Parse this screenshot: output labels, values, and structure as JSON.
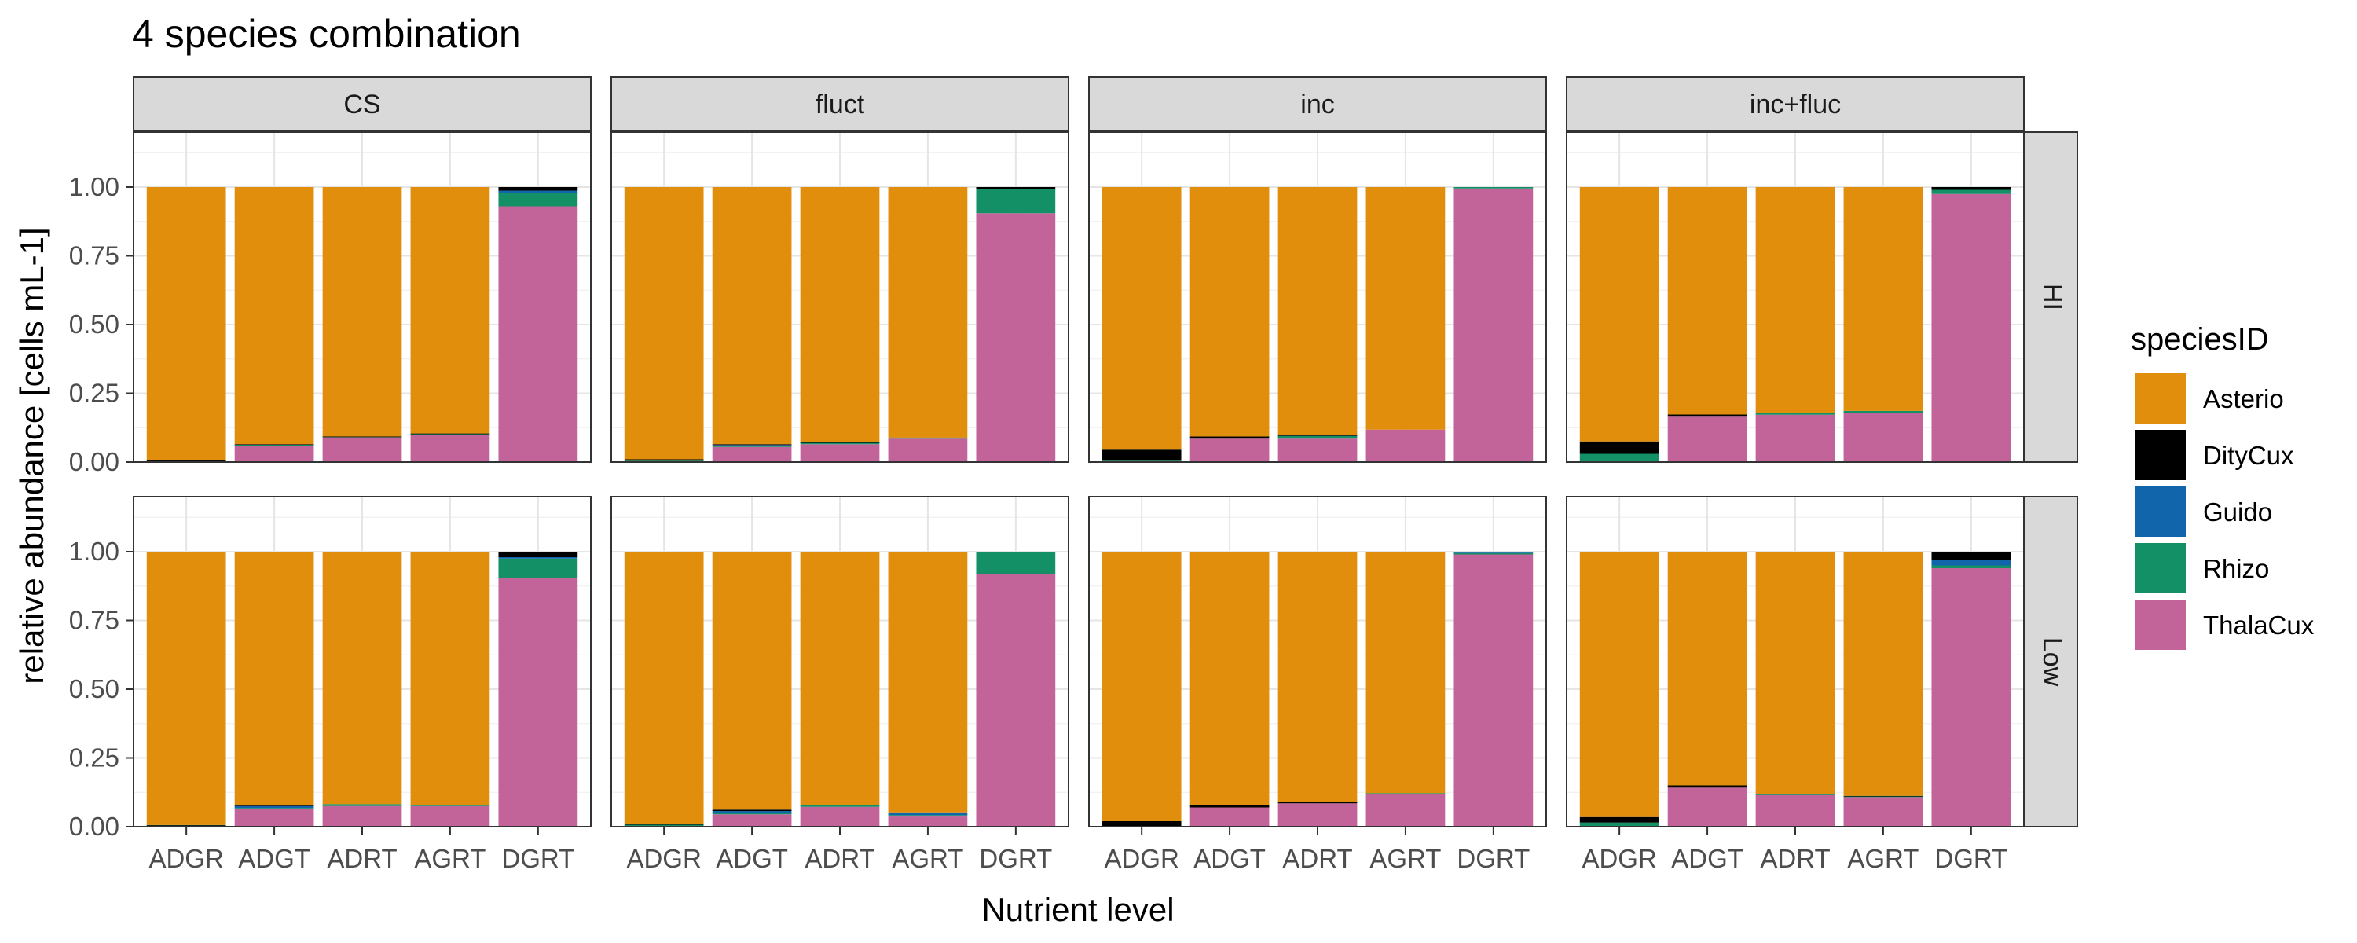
{
  "chart_data": {
    "type": "bar",
    "stacked": true,
    "title": "4 species combination",
    "xlabel": "Nutrient level",
    "ylabel": "relative abundance [cells mL-1]",
    "ylim": [
      0,
      1.2
    ],
    "yticks": [
      "0.00",
      "0.25",
      "0.50",
      "0.75",
      "1.00"
    ],
    "grid": true,
    "legend_position": "right",
    "categories": [
      "ADGR",
      "ADGT",
      "ADRT",
      "AGRT",
      "DGRT"
    ],
    "facet_columns": [
      "CS",
      "fluct",
      "inc",
      "inc+fluc"
    ],
    "facet_rows": [
      "HI",
      "Low"
    ],
    "legend": {
      "title": "speciesID",
      "entries": [
        "Asterio",
        "DityCux",
        "Guido",
        "Rhizo",
        "ThalaCux"
      ]
    },
    "colors": {
      "Asterio": "#E08E0B",
      "DityCux": "#000000",
      "Guido": "#1065AB",
      "Rhizo": "#139065",
      "ThalaCux": "#C26399"
    },
    "stack_order": [
      "ThalaCux",
      "Rhizo",
      "Guido",
      "DityCux",
      "Asterio"
    ],
    "panels": [
      {
        "row": "HI",
        "col": "CS",
        "bars": [
          {
            "ThalaCux": 0.0,
            "Rhizo": 0.003,
            "Guido": 0.0,
            "DityCux": 0.005,
            "Asterio": 0.992
          },
          {
            "ThalaCux": 0.06,
            "Rhizo": 0.003,
            "Guido": 0.0,
            "DityCux": 0.002,
            "Asterio": 0.935
          },
          {
            "ThalaCux": 0.09,
            "Rhizo": 0.002,
            "Guido": 0.0,
            "DityCux": 0.001,
            "Asterio": 0.907
          },
          {
            "ThalaCux": 0.1,
            "Rhizo": 0.003,
            "Guido": 0.0,
            "DityCux": 0.001,
            "Asterio": 0.896
          },
          {
            "ThalaCux": 0.93,
            "Rhizo": 0.05,
            "Guido": 0.007,
            "DityCux": 0.013,
            "Asterio": 0.0
          }
        ]
      },
      {
        "row": "HI",
        "col": "fluct",
        "bars": [
          {
            "ThalaCux": 0.0,
            "Rhizo": 0.005,
            "Guido": 0.0,
            "DityCux": 0.005,
            "Asterio": 0.99
          },
          {
            "ThalaCux": 0.055,
            "Rhizo": 0.005,
            "Guido": 0.002,
            "DityCux": 0.003,
            "Asterio": 0.935
          },
          {
            "ThalaCux": 0.065,
            "Rhizo": 0.006,
            "Guido": 0.0,
            "DityCux": 0.001,
            "Asterio": 0.928
          },
          {
            "ThalaCux": 0.085,
            "Rhizo": 0.003,
            "Guido": 0.0,
            "DityCux": 0.001,
            "Asterio": 0.911
          },
          {
            "ThalaCux": 0.905,
            "Rhizo": 0.088,
            "Guido": 0.0,
            "DityCux": 0.007,
            "Asterio": 0.0
          }
        ]
      },
      {
        "row": "HI",
        "col": "inc",
        "bars": [
          {
            "ThalaCux": 0.0,
            "Rhizo": 0.005,
            "Guido": 0.0,
            "DityCux": 0.04,
            "Asterio": 0.955
          },
          {
            "ThalaCux": 0.085,
            "Rhizo": 0.0,
            "Guido": 0.0,
            "DityCux": 0.008,
            "Asterio": 0.907
          },
          {
            "ThalaCux": 0.085,
            "Rhizo": 0.01,
            "Guido": 0.0,
            "DityCux": 0.005,
            "Asterio": 0.9
          },
          {
            "ThalaCux": 0.118,
            "Rhizo": 0.0,
            "Guido": 0.0,
            "DityCux": 0.0,
            "Asterio": 0.882
          },
          {
            "ThalaCux": 0.995,
            "Rhizo": 0.005,
            "Guido": 0.0,
            "DityCux": 0.0,
            "Asterio": 0.0
          }
        ]
      },
      {
        "row": "HI",
        "col": "inc+fluc",
        "bars": [
          {
            "ThalaCux": 0.0,
            "Rhizo": 0.03,
            "Guido": 0.0,
            "DityCux": 0.045,
            "Asterio": 0.925
          },
          {
            "ThalaCux": 0.165,
            "Rhizo": 0.0,
            "Guido": 0.0,
            "DityCux": 0.008,
            "Asterio": 0.827
          },
          {
            "ThalaCux": 0.172,
            "Rhizo": 0.006,
            "Guido": 0.0,
            "DityCux": 0.002,
            "Asterio": 0.82
          },
          {
            "ThalaCux": 0.18,
            "Rhizo": 0.006,
            "Guido": 0.0,
            "DityCux": 0.0,
            "Asterio": 0.814
          },
          {
            "ThalaCux": 0.975,
            "Rhizo": 0.015,
            "Guido": 0.0,
            "DityCux": 0.01,
            "Asterio": 0.0
          }
        ]
      },
      {
        "row": "Low",
        "col": "CS",
        "bars": [
          {
            "ThalaCux": 0.0,
            "Rhizo": 0.005,
            "Guido": 0.0,
            "DityCux": 0.001,
            "Asterio": 0.994
          },
          {
            "ThalaCux": 0.065,
            "Rhizo": 0.003,
            "Guido": 0.007,
            "DityCux": 0.002,
            "Asterio": 0.923
          },
          {
            "ThalaCux": 0.075,
            "Rhizo": 0.007,
            "Guido": 0.0,
            "DityCux": 0.0,
            "Asterio": 0.918
          },
          {
            "ThalaCux": 0.075,
            "Rhizo": 0.003,
            "Guido": 0.0,
            "DityCux": 0.0,
            "Asterio": 0.922
          },
          {
            "ThalaCux": 0.905,
            "Rhizo": 0.07,
            "Guido": 0.005,
            "DityCux": 0.02,
            "Asterio": 0.0
          }
        ]
      },
      {
        "row": "Low",
        "col": "fluct",
        "bars": [
          {
            "ThalaCux": 0.0,
            "Rhizo": 0.007,
            "Guido": 0.0,
            "DityCux": 0.003,
            "Asterio": 0.99
          },
          {
            "ThalaCux": 0.045,
            "Rhizo": 0.004,
            "Guido": 0.008,
            "DityCux": 0.005,
            "Asterio": 0.938
          },
          {
            "ThalaCux": 0.072,
            "Rhizo": 0.008,
            "Guido": 0.0,
            "DityCux": 0.0,
            "Asterio": 0.92
          },
          {
            "ThalaCux": 0.037,
            "Rhizo": 0.005,
            "Guido": 0.01,
            "DityCux": 0.0,
            "Asterio": 0.948
          },
          {
            "ThalaCux": 0.92,
            "Rhizo": 0.08,
            "Guido": 0.0,
            "DityCux": 0.0,
            "Asterio": 0.0
          }
        ]
      },
      {
        "row": "Low",
        "col": "inc",
        "bars": [
          {
            "ThalaCux": 0.0,
            "Rhizo": 0.0,
            "Guido": 0.0,
            "DityCux": 0.02,
            "Asterio": 0.98
          },
          {
            "ThalaCux": 0.07,
            "Rhizo": 0.0,
            "Guido": 0.0,
            "DityCux": 0.008,
            "Asterio": 0.922
          },
          {
            "ThalaCux": 0.085,
            "Rhizo": 0.0,
            "Guido": 0.0,
            "DityCux": 0.005,
            "Asterio": 0.91
          },
          {
            "ThalaCux": 0.12,
            "Rhizo": 0.002,
            "Guido": 0.0,
            "DityCux": 0.0,
            "Asterio": 0.878
          },
          {
            "ThalaCux": 0.99,
            "Rhizo": 0.005,
            "Guido": 0.005,
            "DityCux": 0.0,
            "Asterio": 0.0
          }
        ]
      },
      {
        "row": "Low",
        "col": "inc+fluc",
        "bars": [
          {
            "ThalaCux": 0.0,
            "Rhizo": 0.015,
            "Guido": 0.0,
            "DityCux": 0.02,
            "Asterio": 0.965
          },
          {
            "ThalaCux": 0.142,
            "Rhizo": 0.0,
            "Guido": 0.0,
            "DityCux": 0.008,
            "Asterio": 0.85
          },
          {
            "ThalaCux": 0.115,
            "Rhizo": 0.002,
            "Guido": 0.0,
            "DityCux": 0.003,
            "Asterio": 0.88
          },
          {
            "ThalaCux": 0.108,
            "Rhizo": 0.002,
            "Guido": 0.0,
            "DityCux": 0.002,
            "Asterio": 0.888
          },
          {
            "ThalaCux": 0.94,
            "Rhizo": 0.01,
            "Guido": 0.02,
            "DityCux": 0.03,
            "Asterio": 0.0
          }
        ]
      }
    ]
  }
}
